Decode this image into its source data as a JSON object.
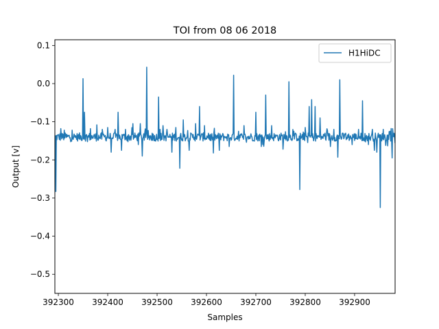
{
  "chart_data": {
    "type": "line",
    "title": "TOI from 08 06 2018",
    "xlabel": "Samples",
    "ylabel": "Output [v]",
    "xlim": [
      392293,
      392982
    ],
    "ylim": [
      -0.55,
      0.115
    ],
    "xticks": [
      392300,
      392400,
      392500,
      392600,
      392700,
      392800,
      392900
    ],
    "xtick_labels": [
      "392300",
      "392400",
      "392500",
      "392600",
      "392700",
      "392800",
      "392900"
    ],
    "yticks": [
      -0.5,
      -0.4,
      -0.3,
      -0.2,
      -0.1,
      0.0,
      0.1
    ],
    "ytick_labels": [
      "−0.5",
      "−0.4",
      "−0.3",
      "−0.2",
      "−0.1",
      "0.0",
      "0.1"
    ],
    "grid": false,
    "legend_position": "top-right",
    "series": [
      {
        "name": "H1HiDC",
        "color": "#1f77b4",
        "baseline": -0.14,
        "x_range": [
          392293,
          392982
        ],
        "spikes": [
          {
            "x": 392295,
            "y": -0.283
          },
          {
            "x": 392305,
            "y": -0.118
          },
          {
            "x": 392312,
            "y": -0.122
          },
          {
            "x": 392328,
            "y": -0.122
          },
          {
            "x": 392350,
            "y": 0.013
          },
          {
            "x": 392353,
            "y": -0.075
          },
          {
            "x": 392365,
            "y": -0.118
          },
          {
            "x": 392378,
            "y": -0.108
          },
          {
            "x": 392389,
            "y": -0.12
          },
          {
            "x": 392400,
            "y": -0.115
          },
          {
            "x": 392407,
            "y": -0.18
          },
          {
            "x": 392415,
            "y": -0.12
          },
          {
            "x": 392421,
            "y": -0.075
          },
          {
            "x": 392428,
            "y": -0.175
          },
          {
            "x": 392436,
            "y": -0.12
          },
          {
            "x": 392451,
            "y": -0.105
          },
          {
            "x": 392466,
            "y": -0.105
          },
          {
            "x": 392470,
            "y": -0.19
          },
          {
            "x": 392479,
            "y": 0.043
          },
          {
            "x": 392490,
            "y": -0.13
          },
          {
            "x": 392496,
            "y": -0.15
          },
          {
            "x": 392503,
            "y": -0.035
          },
          {
            "x": 392512,
            "y": -0.11
          },
          {
            "x": 392520,
            "y": -0.12
          },
          {
            "x": 392530,
            "y": -0.18
          },
          {
            "x": 392538,
            "y": -0.115
          },
          {
            "x": 392546,
            "y": -0.222
          },
          {
            "x": 392553,
            "y": -0.095
          },
          {
            "x": 392565,
            "y": -0.175
          },
          {
            "x": 392578,
            "y": -0.105
          },
          {
            "x": 392586,
            "y": -0.06
          },
          {
            "x": 392596,
            "y": -0.11
          },
          {
            "x": 392604,
            "y": -0.13
          },
          {
            "x": 392614,
            "y": -0.182
          },
          {
            "x": 392626,
            "y": -0.175
          },
          {
            "x": 392637,
            "y": -0.14
          },
          {
            "x": 392646,
            "y": -0.165
          },
          {
            "x": 392655,
            "y": 0.022
          },
          {
            "x": 392665,
            "y": -0.125
          },
          {
            "x": 392676,
            "y": -0.11
          },
          {
            "x": 392689,
            "y": -0.14
          },
          {
            "x": 392700,
            "y": -0.075
          },
          {
            "x": 392711,
            "y": -0.165
          },
          {
            "x": 392720,
            "y": -0.03
          },
          {
            "x": 392732,
            "y": -0.11
          },
          {
            "x": 392743,
            "y": -0.135
          },
          {
            "x": 392755,
            "y": -0.172
          },
          {
            "x": 392767,
            "y": 0.005
          },
          {
            "x": 392777,
            "y": -0.125
          },
          {
            "x": 392789,
            "y": -0.278
          },
          {
            "x": 392800,
            "y": -0.115
          },
          {
            "x": 392808,
            "y": -0.06
          },
          {
            "x": 392813,
            "y": -0.042
          },
          {
            "x": 392820,
            "y": -0.06
          },
          {
            "x": 392830,
            "y": -0.09
          },
          {
            "x": 392840,
            "y": -0.13
          },
          {
            "x": 392851,
            "y": -0.165
          },
          {
            "x": 392858,
            "y": -0.12
          },
          {
            "x": 392866,
            "y": -0.193
          },
          {
            "x": 392870,
            "y": 0.01
          },
          {
            "x": 392882,
            "y": -0.13
          },
          {
            "x": 392895,
            "y": -0.16
          },
          {
            "x": 392908,
            "y": -0.12
          },
          {
            "x": 392916,
            "y": -0.045
          },
          {
            "x": 392928,
            "y": -0.16
          },
          {
            "x": 392936,
            "y": -0.12
          },
          {
            "x": 392940,
            "y": -0.175
          },
          {
            "x": 392945,
            "y": -0.18
          },
          {
            "x": 392952,
            "y": -0.325
          },
          {
            "x": 392958,
            "y": -0.12
          },
          {
            "x": 392966,
            "y": -0.135
          },
          {
            "x": 392972,
            "y": -0.125
          },
          {
            "x": 392976,
            "y": -0.195
          },
          {
            "x": 392980,
            "y": -0.13
          }
        ]
      }
    ]
  }
}
